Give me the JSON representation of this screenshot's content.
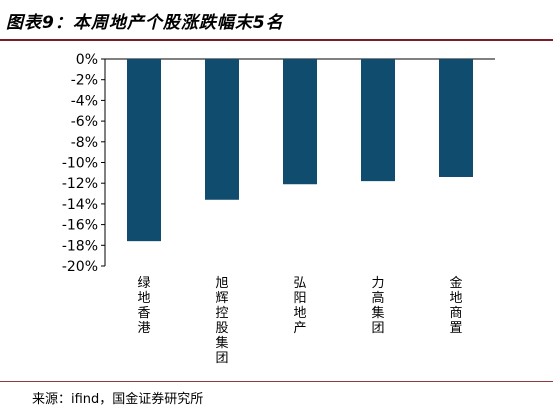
{
  "header": {
    "title": "图表9：本周地产个股涨跌幅末5名"
  },
  "footer": {
    "source": "来源：ifind，国金证券研究所"
  },
  "chart_data": {
    "type": "bar",
    "categories": [
      "绿地香港",
      "旭辉控股集团",
      "弘阳地产",
      "力高集团",
      "金地商置"
    ],
    "values": [
      -17.6,
      -13.6,
      -12.1,
      -11.8,
      -11.4
    ],
    "ylim": [
      -20,
      0
    ],
    "yticks": [
      "0%",
      "-2%",
      "-4%",
      "-6%",
      "-8%",
      "-10%",
      "-12%",
      "-14%",
      "-16%",
      "-18%",
      "-20%"
    ],
    "grid": false,
    "legend": "none",
    "bar_color": "#0f4c6e"
  }
}
